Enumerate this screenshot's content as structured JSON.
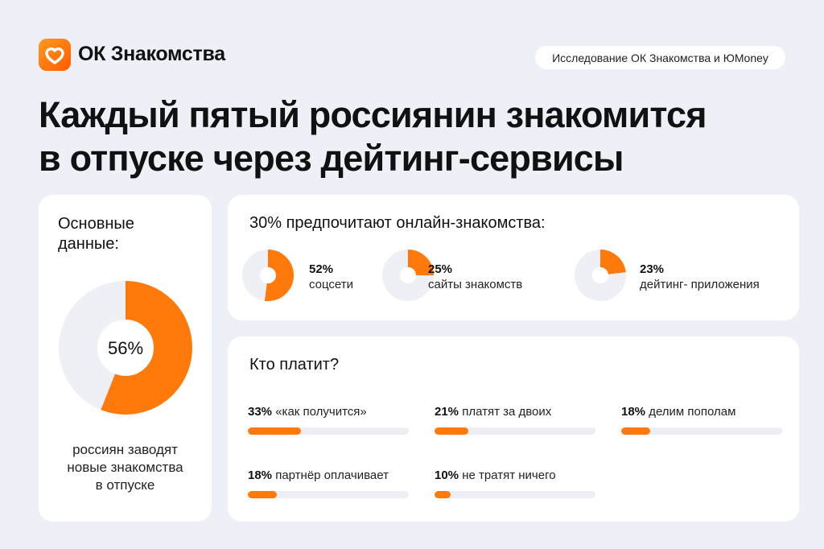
{
  "header": {
    "brand": "ОК Знакомства",
    "badge": "Исследование ОК Знакомства и ЮMoney",
    "title_line1": "Каждый пятый россиянин знакомится",
    "title_line2": "в отпуске через дейтинг-сервисы"
  },
  "colors": {
    "accent": "#ff7a0a",
    "track": "#eef0f6",
    "background": "#eef0f7"
  },
  "left": {
    "heading1": "Основные",
    "heading2": "данные:",
    "center": "56%",
    "caption1": "россиян заводят",
    "caption2": "новые знакомства",
    "caption3": "в отпуске"
  },
  "online": {
    "heading": "30% предпочитают онлайн-знакомства:"
  },
  "pay": {
    "heading": "Кто платит?"
  },
  "chart_data": [
    {
      "type": "pie",
      "values": [
        56
      ],
      "labels": [
        "56%"
      ],
      "max": 100
    },
    {
      "type": "pie",
      "categories": [
        "соцсети",
        "сайты знакомств",
        "дейтинг- приложения"
      ],
      "values": [
        52,
        25,
        23
      ],
      "labels": [
        "52%",
        "25%",
        "23%"
      ]
    },
    {
      "type": "bar",
      "orientation": "horizontal",
      "categories": [
        "«как получится»",
        "платят за двоих",
        "делим пополам",
        "партнёр оплачивает",
        "не тратят ничего"
      ],
      "values": [
        33,
        21,
        18,
        18,
        10
      ],
      "labels": [
        "33%",
        "21%",
        "18%",
        "18%",
        "10%"
      ],
      "xlim": [
        0,
        100
      ]
    }
  ]
}
